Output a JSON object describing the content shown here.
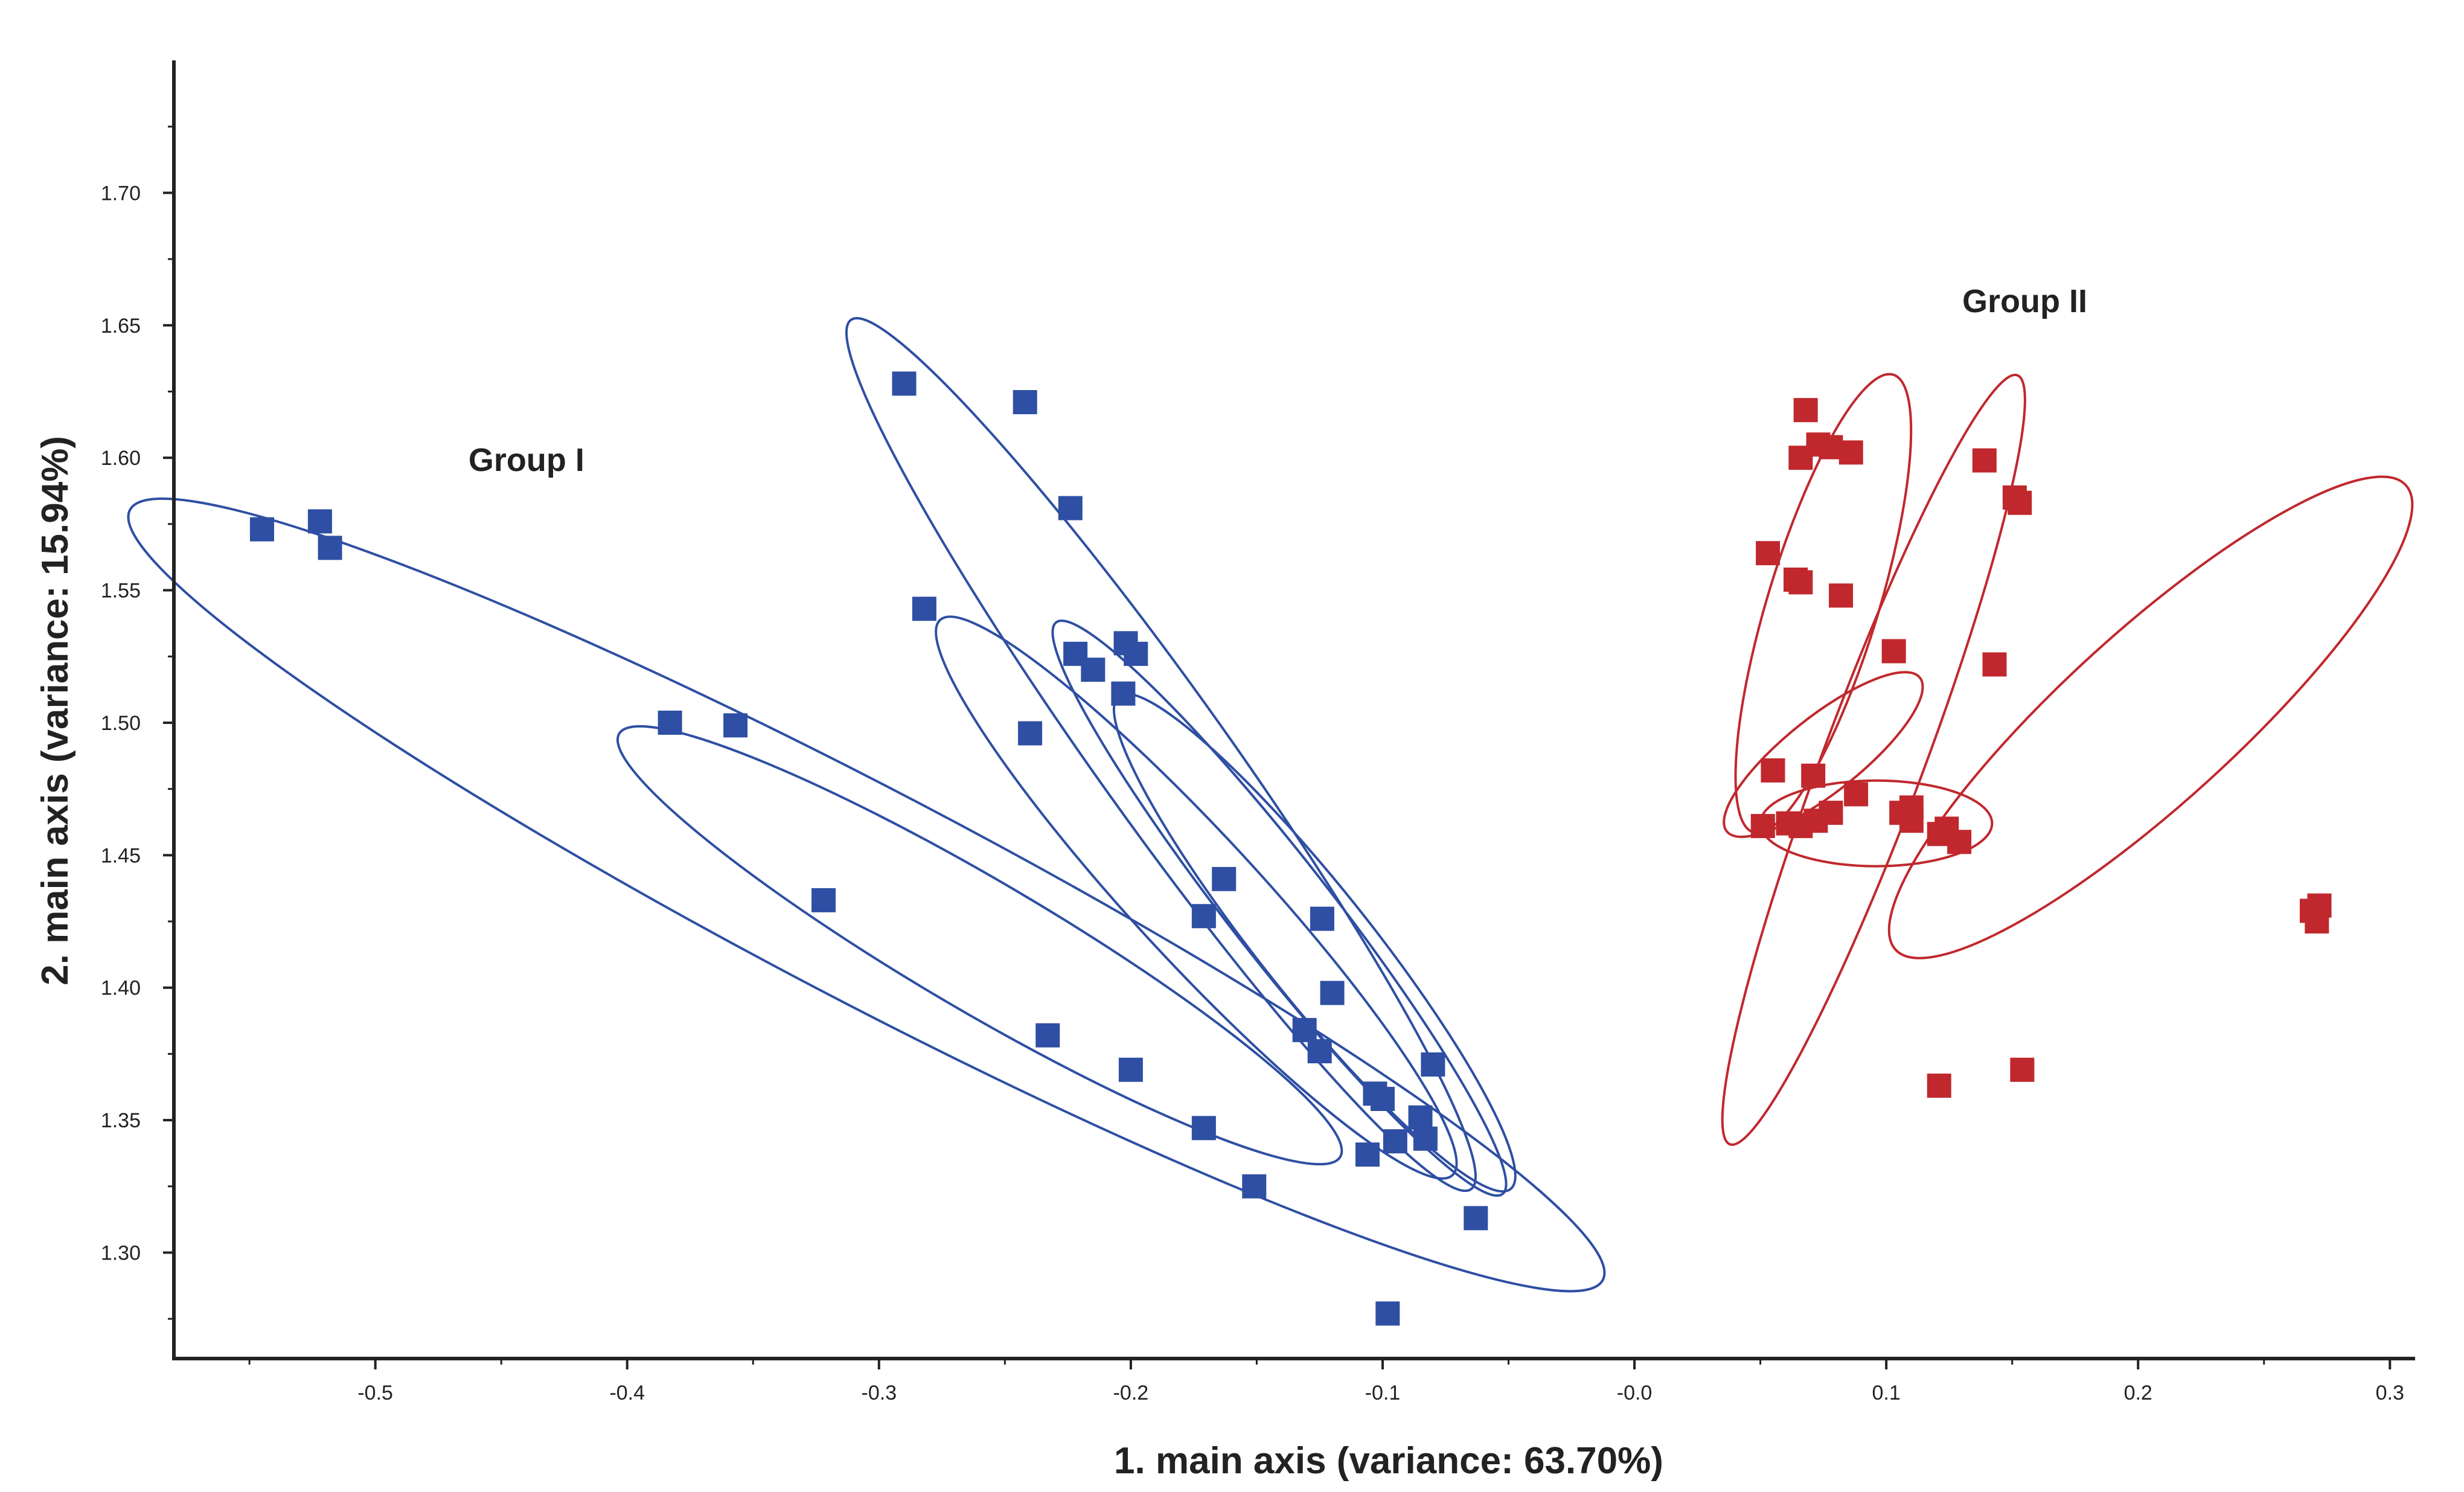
{
  "chart_data": {
    "type": "scatter",
    "title": "",
    "xlabel": "1. main axis (variance: 63.70%)",
    "ylabel": "2. main axis (variance: 15.94%)",
    "xlim": [
      -0.58,
      0.31
    ],
    "ylim": [
      1.26,
      1.75
    ],
    "grid": false,
    "xticks": [
      -0.5,
      -0.4,
      -0.3,
      -0.2,
      -0.1,
      0.0,
      0.1,
      0.2,
      0.3
    ],
    "xtick_labels": [
      "-0.5",
      "-0.4",
      "-0.3",
      "-0.2",
      "-0.1",
      "-0.0",
      "0.1",
      "0.2",
      "0.3"
    ],
    "yticks": [
      1.3,
      1.35,
      1.4,
      1.45,
      1.5,
      1.55,
      1.6,
      1.65,
      1.7
    ],
    "ytick_labels": [
      "1.30",
      "1.35",
      "1.40",
      "1.45",
      "1.50",
      "1.55",
      "1.60",
      "1.65",
      "1.70"
    ],
    "annotations": [
      {
        "text": "Group I",
        "x": -0.44,
        "y": 1.595
      },
      {
        "text": "Group II",
        "x": 0.155,
        "y": 1.655
      }
    ],
    "series": [
      {
        "name": "Group I",
        "color": "#2e4fa3",
        "marker": "square",
        "points": [
          [
            -0.545,
            1.573
          ],
          [
            -0.522,
            1.576
          ],
          [
            -0.518,
            1.566
          ],
          [
            -0.383,
            1.5
          ],
          [
            -0.357,
            1.499
          ],
          [
            -0.322,
            1.433
          ],
          [
            -0.29,
            1.628
          ],
          [
            -0.242,
            1.621
          ],
          [
            -0.224,
            1.581
          ],
          [
            -0.282,
            1.543
          ],
          [
            -0.24,
            1.496
          ],
          [
            -0.222,
            1.526
          ],
          [
            -0.215,
            1.52
          ],
          [
            -0.202,
            1.53
          ],
          [
            -0.198,
            1.526
          ],
          [
            -0.203,
            1.511
          ],
          [
            -0.163,
            1.441
          ],
          [
            -0.171,
            1.427
          ],
          [
            -0.124,
            1.426
          ],
          [
            -0.12,
            1.398
          ],
          [
            -0.131,
            1.384
          ],
          [
            -0.125,
            1.376
          ],
          [
            -0.233,
            1.382
          ],
          [
            -0.2,
            1.369
          ],
          [
            -0.171,
            1.347
          ],
          [
            -0.151,
            1.325
          ],
          [
            -0.103,
            1.36
          ],
          [
            -0.1,
            1.358
          ],
          [
            -0.095,
            1.342
          ],
          [
            -0.106,
            1.337
          ],
          [
            -0.085,
            1.351
          ],
          [
            -0.083,
            1.343
          ],
          [
            -0.08,
            1.371
          ],
          [
            -0.063,
            1.313
          ],
          [
            -0.098,
            1.277
          ]
        ],
        "ellipses": [
          {
            "cx": -0.305,
            "cy": 1.435,
            "rx": 0.33,
            "ry": 0.042,
            "angle": 27.6
          },
          {
            "cx": -0.26,
            "cy": 1.416,
            "rx": 0.166,
            "ry": 0.026,
            "angle": 30.4
          },
          {
            "cx": -0.188,
            "cy": 1.488,
            "rx": 0.212,
            "ry": 0.026,
            "angle": 54.5
          },
          {
            "cx": -0.174,
            "cy": 1.434,
            "rx": 0.15,
            "ry": 0.025,
            "angle": 47.3
          },
          {
            "cx": -0.141,
            "cy": 1.43,
            "rx": 0.144,
            "ry": 0.02,
            "angle": 52.0
          },
          {
            "cx": -0.127,
            "cy": 1.417,
            "rx": 0.125,
            "ry": 0.022,
            "angle": 51.5
          }
        ]
      },
      {
        "name": "Group II",
        "color": "#c0282d",
        "marker": "square",
        "points": [
          [
            0.068,
            1.618
          ],
          [
            0.066,
            1.6
          ],
          [
            0.073,
            1.605
          ],
          [
            0.078,
            1.604
          ],
          [
            0.086,
            1.602
          ],
          [
            0.139,
            1.599
          ],
          [
            0.151,
            1.585
          ],
          [
            0.153,
            1.583
          ],
          [
            0.053,
            1.564
          ],
          [
            0.064,
            1.554
          ],
          [
            0.066,
            1.553
          ],
          [
            0.082,
            1.548
          ],
          [
            0.103,
            1.527
          ],
          [
            0.143,
            1.522
          ],
          [
            0.055,
            1.482
          ],
          [
            0.071,
            1.48
          ],
          [
            0.088,
            1.473
          ],
          [
            0.051,
            1.461
          ],
          [
            0.061,
            1.462
          ],
          [
            0.066,
            1.461
          ],
          [
            0.072,
            1.463
          ],
          [
            0.078,
            1.466
          ],
          [
            0.106,
            1.466
          ],
          [
            0.11,
            1.468
          ],
          [
            0.11,
            1.463
          ],
          [
            0.121,
            1.458
          ],
          [
            0.124,
            1.46
          ],
          [
            0.129,
            1.455
          ],
          [
            0.269,
            1.429
          ],
          [
            0.272,
            1.431
          ],
          [
            0.271,
            1.425
          ],
          [
            0.121,
            1.363
          ],
          [
            0.154,
            1.369
          ]
        ],
        "ellipses": [
          {
            "cx": 0.095,
            "cy": 1.486,
            "rx": 0.163,
            "ry": 0.02,
            "angle": -69.5
          },
          {
            "cx": 0.075,
            "cy": 1.545,
            "rx": 0.095,
            "ry": 0.022,
            "angle": -73.0
          },
          {
            "cx": 0.205,
            "cy": 1.502,
            "rx": 0.137,
            "ry": 0.034,
            "angle": -42.3
          },
          {
            "cx": 0.075,
            "cy": 1.488,
            "rx": 0.049,
            "ry": 0.015,
            "angle": -38.5
          },
          {
            "cx": 0.096,
            "cy": 1.462,
            "rx": 0.046,
            "ry": 0.017,
            "angle": 0
          }
        ]
      }
    ]
  }
}
